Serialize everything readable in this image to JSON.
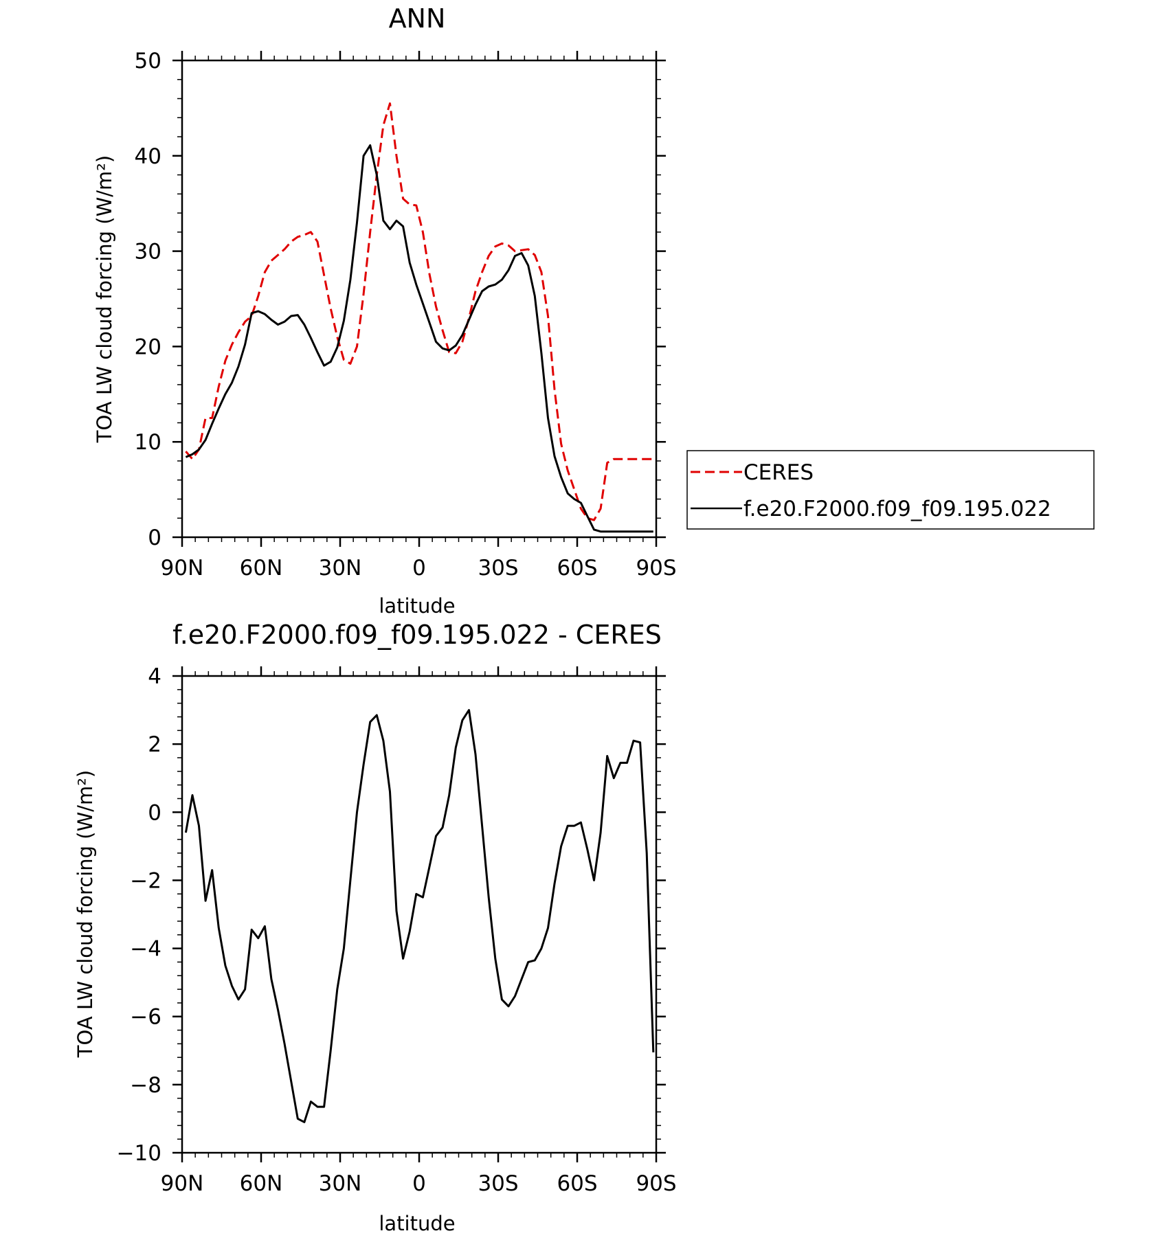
{
  "chart_data": [
    {
      "type": "line",
      "title": "ANN",
      "xlabel": "latitude",
      "ylabel": "TOA LW cloud forcing (W/m²)",
      "xlim": [
        90,
        -90
      ],
      "ylim": [
        0,
        50
      ],
      "xticks": [
        90,
        60,
        30,
        0,
        -30,
        -60,
        -90
      ],
      "xtick_labels": [
        "90N",
        "60N",
        "30N",
        "0",
        "30S",
        "60S",
        "90S"
      ],
      "yticks": [
        0,
        10,
        20,
        30,
        40,
        50
      ],
      "ytick_labels": [
        "0",
        "10",
        "20",
        "30",
        "40",
        "50"
      ],
      "legend_position": "right",
      "series": [
        {
          "name": "CERES",
          "color": "#e00000",
          "dash": "dashed",
          "x": [
            88.6,
            86.1,
            83.6,
            81.1,
            78.6,
            76.1,
            73.6,
            71.1,
            68.6,
            66.1,
            63.6,
            61.1,
            58.6,
            56.1,
            53.6,
            51.1,
            48.6,
            46.1,
            43.6,
            41.1,
            38.6,
            36.1,
            33.6,
            31.1,
            28.6,
            26.1,
            23.6,
            21.1,
            18.6,
            16.1,
            13.6,
            11.1,
            8.6,
            6.1,
            3.6,
            1.1,
            -1.4,
            -3.9,
            -6.4,
            -8.9,
            -11.4,
            -13.9,
            -16.4,
            -18.9,
            -21.4,
            -23.9,
            -26.4,
            -28.9,
            -31.4,
            -33.9,
            -36.4,
            -38.9,
            -41.4,
            -43.9,
            -46.4,
            -48.9,
            -51.4,
            -53.9,
            -56.4,
            -58.9,
            -61.4,
            -63.9,
            -66.4,
            -68.9,
            -71.4,
            -73.9,
            -76.4,
            -78.9,
            -81.4,
            -83.9,
            -86.4,
            -88.9
          ],
          "y": [
            9.0,
            8.2,
            9.2,
            12.5,
            12.5,
            15.8,
            18.5,
            20.2,
            21.5,
            22.6,
            23.2,
            25.3,
            27.8,
            29.0,
            29.6,
            30.2,
            31.0,
            31.5,
            31.7,
            32.0,
            31.0,
            27.5,
            24.0,
            21.0,
            18.6,
            18.2,
            20.0,
            25.5,
            32.0,
            38.0,
            43.2,
            45.5,
            40.0,
            35.5,
            34.9,
            34.8,
            32.0,
            27.6,
            24.2,
            21.7,
            19.4,
            19.3,
            20.5,
            23.0,
            25.8,
            27.8,
            29.5,
            30.5,
            30.8,
            30.6,
            30.0,
            30.1,
            30.2,
            29.6,
            27.8,
            23.2,
            15.5,
            9.8,
            7.0,
            5.0,
            3.0,
            2.0,
            1.8,
            3.0,
            7.8,
            8.2,
            8.2,
            8.2,
            8.2,
            8.2,
            8.2,
            8.2
          ]
        },
        {
          "name": "f.e20.F2000.f09_f09.195.022",
          "color": "#000000",
          "dash": "solid",
          "x": [
            88.6,
            86.1,
            83.6,
            81.1,
            78.6,
            76.1,
            73.6,
            71.1,
            68.6,
            66.1,
            63.6,
            61.1,
            58.6,
            56.1,
            53.6,
            51.1,
            48.6,
            46.1,
            43.6,
            41.1,
            38.6,
            36.1,
            33.6,
            31.1,
            28.6,
            26.1,
            23.6,
            21.1,
            18.6,
            16.1,
            13.6,
            11.1,
            8.6,
            6.1,
            3.6,
            1.1,
            -1.4,
            -3.9,
            -6.4,
            -8.9,
            -11.4,
            -13.9,
            -16.4,
            -18.9,
            -21.4,
            -23.9,
            -26.4,
            -28.9,
            -31.4,
            -33.9,
            -36.4,
            -38.9,
            -41.4,
            -43.9,
            -46.4,
            -48.9,
            -51.4,
            -53.9,
            -56.4,
            -58.9,
            -61.4,
            -63.9,
            -66.4,
            -68.9,
            -71.4,
            -73.9,
            -76.4,
            -78.9,
            -81.4,
            -83.9,
            -86.4,
            -88.9
          ],
          "y": [
            8.4,
            8.7,
            9.2,
            10.2,
            11.9,
            13.5,
            15.0,
            16.2,
            17.9,
            20.2,
            23.5,
            23.7,
            23.4,
            22.8,
            22.3,
            22.6,
            23.2,
            23.3,
            22.3,
            20.9,
            19.4,
            18.0,
            18.4,
            19.9,
            22.7,
            27.0,
            33.0,
            40.0,
            41.1,
            38.0,
            33.2,
            32.3,
            33.2,
            32.6,
            28.8,
            26.5,
            24.5,
            22.5,
            20.5,
            19.8,
            19.6,
            20.1,
            21.2,
            22.8,
            24.4,
            25.8,
            26.3,
            26.5,
            27.0,
            28.0,
            29.5,
            29.8,
            28.5,
            25.3,
            19.3,
            12.5,
            8.5,
            6.3,
            4.6,
            4.0,
            3.6,
            2.2,
            0.8,
            0.6,
            0.6,
            0.6,
            0.6,
            0.6,
            0.6,
            0.6,
            0.6,
            0.6
          ]
        }
      ]
    },
    {
      "type": "line",
      "title": "f.e20.F2000.f09_f09.195.022 - CERES",
      "xlabel": "latitude",
      "ylabel": "TOA LW cloud forcing (W/m²)",
      "xlim": [
        90,
        -90
      ],
      "ylim": [
        -10,
        4
      ],
      "xticks": [
        90,
        60,
        30,
        0,
        -30,
        -60,
        -90
      ],
      "xtick_labels": [
        "90N",
        "60N",
        "30N",
        "0",
        "30S",
        "60S",
        "90S"
      ],
      "yticks": [
        -10,
        -8,
        -6,
        -4,
        -2,
        0,
        2,
        4
      ],
      "ytick_labels": [
        "−10",
        "−8",
        "−6",
        "−4",
        "−2",
        "0",
        "2",
        "4"
      ],
      "series": [
        {
          "color": "#000000",
          "dash": "solid",
          "x": [
            88.6,
            86.1,
            83.6,
            81.1,
            78.6,
            76.1,
            73.6,
            71.1,
            68.6,
            66.1,
            63.6,
            61.1,
            58.6,
            56.1,
            53.6,
            51.1,
            48.6,
            46.1,
            43.6,
            41.1,
            38.6,
            36.1,
            33.6,
            31.1,
            28.6,
            26.1,
            23.6,
            21.1,
            18.6,
            16.1,
            13.6,
            11.1,
            8.6,
            6.1,
            3.6,
            1.1,
            -1.4,
            -3.9,
            -6.4,
            -8.9,
            -11.4,
            -13.9,
            -16.4,
            -18.9,
            -21.4,
            -23.9,
            -26.4,
            -28.9,
            -31.4,
            -33.9,
            -36.4,
            -38.9,
            -41.4,
            -43.9,
            -46.4,
            -48.9,
            -51.4,
            -53.9,
            -56.4,
            -58.9,
            -61.4,
            -63.9,
            -66.4,
            -68.9,
            -71.4,
            -73.9,
            -76.4,
            -78.9,
            -81.4,
            -83.9,
            -86.4,
            -88.9
          ],
          "y": [
            -0.6,
            0.5,
            -0.4,
            -2.6,
            -1.7,
            -3.4,
            -4.5,
            -5.1,
            -5.5,
            -5.2,
            -3.45,
            -3.7,
            -3.35,
            -4.9,
            -5.8,
            -6.8,
            -7.9,
            -9.0,
            -9.1,
            -8.5,
            -8.65,
            -8.65,
            -7.0,
            -5.2,
            -4.0,
            -2.0,
            0.0,
            1.4,
            2.65,
            2.85,
            2.1,
            0.6,
            -2.9,
            -4.3,
            -3.5,
            -2.4,
            -2.5,
            -1.6,
            -0.7,
            -0.45,
            0.5,
            1.9,
            2.7,
            3.0,
            1.7,
            -0.4,
            -2.5,
            -4.3,
            -5.5,
            -5.7,
            -5.4,
            -4.9,
            -4.4,
            -4.35,
            -4.0,
            -3.4,
            -2.1,
            -1.0,
            -0.4,
            -0.4,
            -0.3,
            -1.1,
            -2.0,
            -0.6,
            1.65,
            1.0,
            1.45,
            1.45,
            2.1,
            2.05,
            -1.2,
            -7.05
          ]
        }
      ]
    }
  ]
}
